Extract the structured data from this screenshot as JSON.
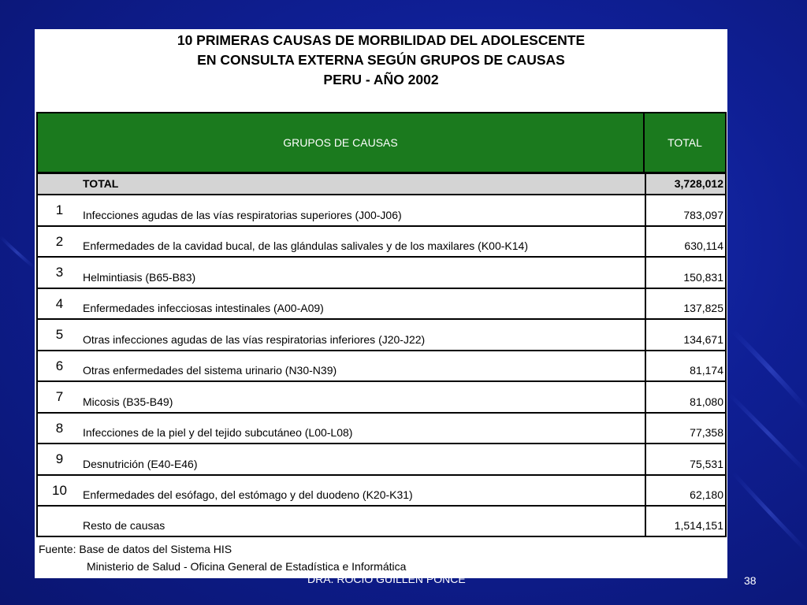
{
  "title": {
    "line1": "10 PRIMERAS CAUSAS DE MORBILIDAD DEL ADOLESCENTE",
    "line2": "EN CONSULTA EXTERNA SEGÚN GRUPOS DE CAUSAS",
    "line3": "PERU - AÑO 2002"
  },
  "table": {
    "header": {
      "cause": "GRUPOS DE CAUSAS",
      "total": "TOTAL"
    },
    "total_row": {
      "label": "TOTAL",
      "value": "3,728,012"
    },
    "rows": [
      {
        "num": "1",
        "cause": "Infecciones agudas de las vías respiratorias superiores  (J00-J06)",
        "value": "783,097"
      },
      {
        "num": "2",
        "cause": "Enfermedades de la cavidad bucal, de las glándulas salivales y de los maxilares  (K00-K14)",
        "value": "630,114"
      },
      {
        "num": "3",
        "cause": "Helmintiasis  (B65-B83)",
        "value": "150,831"
      },
      {
        "num": "4",
        "cause": "Enfermedades infecciosas intestinales (A00-A09)",
        "value": "137,825"
      },
      {
        "num": "5",
        "cause": "Otras infecciones agudas de las vías respiratorias inferiores  (J20-J22)",
        "value": "134,671"
      },
      {
        "num": "6",
        "cause": "Otras enfermedades del sistema urinario  (N30-N39)",
        "value": "81,174"
      },
      {
        "num": "7",
        "cause": "Micosis  (B35-B49)",
        "value": "81,080"
      },
      {
        "num": "8",
        "cause": "Infecciones de la piel y del tejido subcutáneo (L00-L08)",
        "value": "77,358"
      },
      {
        "num": "9",
        "cause": "Desnutrición  (E40-E46)",
        "value": "75,531"
      },
      {
        "num": "10",
        "cause": "Enfermedades del esófago, del estómago y del duodeno  (K20-K31)",
        "value": "62,180"
      },
      {
        "num": "",
        "cause": "Resto de causas",
        "value": "1,514,151"
      }
    ]
  },
  "source": {
    "line1": "Fuente: Base de datos del Sistema HIS",
    "line2": "Ministerio de Salud - Oficina General de Estadística e Informática"
  },
  "footer": {
    "author": "DRA. ROCIO GUILLEN PONCE",
    "page": "38"
  }
}
